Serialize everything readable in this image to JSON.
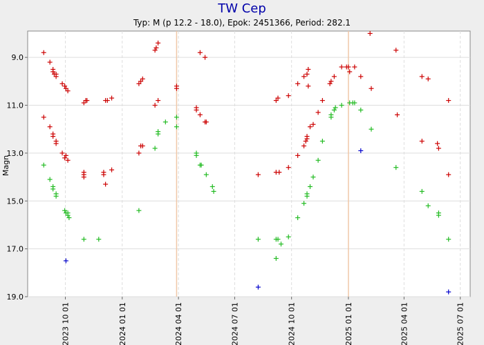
{
  "chart_data": {
    "type": "scatter",
    "title": "TW Cep",
    "subtitle": "Typ: M (p 12.2 - 18.0), Epok: 2451366, Period: 282.1",
    "ylabel": "Magn",
    "xlabel": "",
    "y_inverted": true,
    "ylim": [
      19.0,
      7.9
    ],
    "xlim": [
      "2023-08-01",
      "2025-07-17"
    ],
    "y_ticks": [
      "9.0",
      "11.0",
      "13.0",
      "15.0",
      "17.0",
      "19.0"
    ],
    "x_ticks": [
      "2023 10 01",
      "2024 01 01",
      "2024 04 01",
      "2024 07 01",
      "2024 10 01",
      "2025 01 01",
      "2025 04 01",
      "2025 07 01"
    ],
    "x_tick_dates": [
      "2023-10-01",
      "2024-01-01",
      "2024-04-01",
      "2024-07-01",
      "2024-10-01",
      "2025-01-01",
      "2025-04-01",
      "2025-07-01"
    ],
    "vertical_markers": [
      "2024-03-29",
      "2025-01-01"
    ],
    "grid": true,
    "colors": {
      "background": "#eeeeee",
      "plot_bg": "#ffffff",
      "grid": "#dddddd",
      "title": "#0000aa",
      "marker_line": "#f0c8a8"
    },
    "series": [
      {
        "color": "#cc0000",
        "points": [
          [
            "2023-08-27",
            8.8
          ],
          [
            "2023-09-06",
            9.2
          ],
          [
            "2023-09-11",
            9.6
          ],
          [
            "2023-09-13",
            9.7
          ],
          [
            "2023-09-11",
            9.5
          ],
          [
            "2023-09-16",
            9.8
          ],
          [
            "2023-09-16",
            9.7
          ],
          [
            "2023-09-26",
            10.1
          ],
          [
            "2023-09-30",
            10.2
          ],
          [
            "2023-10-05",
            10.4
          ],
          [
            "2023-10-02",
            10.3
          ],
          [
            "2023-10-31",
            10.9
          ],
          [
            "2023-11-03",
            10.8
          ],
          [
            "2023-11-05",
            10.8
          ],
          [
            "2023-12-05",
            10.8
          ],
          [
            "2023-12-08",
            10.8
          ],
          [
            "2023-12-15",
            10.7
          ],
          [
            "2024-01-28",
            10.1
          ],
          [
            "2024-01-31",
            10.0
          ],
          [
            "2024-02-03",
            9.9
          ],
          [
            "2024-02-23",
            8.7
          ],
          [
            "2024-02-25",
            8.6
          ],
          [
            "2024-02-28",
            8.4
          ],
          [
            "2024-02-23",
            11.0
          ],
          [
            "2024-02-28",
            10.8
          ],
          [
            "2024-03-29",
            10.2
          ],
          [
            "2024-03-29",
            10.3
          ],
          [
            "2024-04-30",
            11.1
          ],
          [
            "2024-04-30",
            11.2
          ],
          [
            "2024-05-06",
            8.8
          ],
          [
            "2024-05-06",
            11.4
          ],
          [
            "2024-05-14",
            11.7
          ],
          [
            "2024-05-14",
            9.0
          ],
          [
            "2024-05-16",
            11.7
          ],
          [
            "2023-08-27",
            11.5
          ],
          [
            "2023-09-06",
            11.9
          ],
          [
            "2023-09-11",
            12.2
          ],
          [
            "2023-09-11",
            12.3
          ],
          [
            "2023-09-16",
            12.5
          ],
          [
            "2023-09-16",
            12.6
          ],
          [
            "2023-09-26",
            13.0
          ],
          [
            "2023-09-30",
            13.2
          ],
          [
            "2023-10-02",
            13.1
          ],
          [
            "2023-10-05",
            13.3
          ],
          [
            "2023-10-31",
            13.8
          ],
          [
            "2023-10-31",
            14.0
          ],
          [
            "2023-10-31",
            13.9
          ],
          [
            "2023-12-02",
            13.8
          ],
          [
            "2023-12-02",
            13.9
          ],
          [
            "2023-12-05",
            14.3
          ],
          [
            "2023-12-15",
            13.7
          ],
          [
            "2024-01-28",
            13.0
          ],
          [
            "2024-01-31",
            12.7
          ],
          [
            "2024-02-03",
            12.7
          ],
          [
            "2024-08-08",
            13.9
          ],
          [
            "2024-09-06",
            10.8
          ],
          [
            "2024-09-09",
            10.7
          ],
          [
            "2024-09-06",
            13.8
          ],
          [
            "2024-09-11",
            13.8
          ],
          [
            "2024-09-26",
            10.6
          ],
          [
            "2024-09-26",
            13.6
          ],
          [
            "2024-10-11",
            10.1
          ],
          [
            "2024-10-11",
            13.1
          ],
          [
            "2024-10-21",
            12.7
          ],
          [
            "2024-10-24",
            12.5
          ],
          [
            "2024-10-26",
            12.4
          ],
          [
            "2024-10-26",
            12.3
          ],
          [
            "2024-10-21",
            9.8
          ],
          [
            "2024-10-26",
            9.7
          ],
          [
            "2024-10-28",
            9.5
          ],
          [
            "2024-10-28",
            10.2
          ],
          [
            "2024-10-31",
            11.9
          ],
          [
            "2024-11-05",
            11.8
          ],
          [
            "2024-11-13",
            11.3
          ],
          [
            "2024-11-20",
            10.8
          ],
          [
            "2024-12-02",
            10.1
          ],
          [
            "2024-12-04",
            10.0
          ],
          [
            "2024-12-09",
            9.8
          ],
          [
            "2024-12-21",
            9.4
          ],
          [
            "2024-12-29",
            9.4
          ],
          [
            "2025-01-01",
            9.4
          ],
          [
            "2025-01-03",
            9.6
          ],
          [
            "2025-01-11",
            9.4
          ],
          [
            "2025-01-21",
            9.8
          ],
          [
            "2025-02-05",
            8.0
          ],
          [
            "2025-02-07",
            10.3
          ],
          [
            "2025-03-19",
            8.7
          ],
          [
            "2025-03-21",
            11.4
          ],
          [
            "2025-04-30",
            9.8
          ],
          [
            "2025-05-10",
            9.9
          ],
          [
            "2025-04-30",
            12.5
          ],
          [
            "2025-05-25",
            12.6
          ],
          [
            "2025-05-27",
            12.8
          ],
          [
            "2025-06-12",
            10.8
          ],
          [
            "2025-06-12",
            13.9
          ]
        ]
      },
      {
        "color": "#22bb22",
        "points": [
          [
            "2023-08-27",
            13.5
          ],
          [
            "2023-09-06",
            14.1
          ],
          [
            "2023-09-11",
            14.4
          ],
          [
            "2023-09-11",
            14.5
          ],
          [
            "2023-09-16",
            14.7
          ],
          [
            "2023-09-16",
            14.8
          ],
          [
            "2023-09-30",
            15.4
          ],
          [
            "2023-10-02",
            15.5
          ],
          [
            "2023-10-05",
            15.6
          ],
          [
            "2023-10-05",
            15.5
          ],
          [
            "2023-10-07",
            15.7
          ],
          [
            "2023-10-31",
            16.6
          ],
          [
            "2023-11-24",
            16.6
          ],
          [
            "2024-01-28",
            15.4
          ],
          [
            "2024-02-23",
            12.8
          ],
          [
            "2024-02-28",
            12.2
          ],
          [
            "2024-02-28",
            12.1
          ],
          [
            "2024-03-11",
            11.7
          ],
          [
            "2024-03-29",
            11.5
          ],
          [
            "2024-03-29",
            11.9
          ],
          [
            "2024-04-30",
            13.0
          ],
          [
            "2024-04-30",
            13.1
          ],
          [
            "2024-05-06",
            13.5
          ],
          [
            "2024-05-08",
            13.5
          ],
          [
            "2024-05-16",
            13.9
          ],
          [
            "2024-05-26",
            14.4
          ],
          [
            "2024-05-28",
            14.6
          ],
          [
            "2024-08-08",
            16.6
          ],
          [
            "2024-09-06",
            16.6
          ],
          [
            "2024-09-09",
            16.6
          ],
          [
            "2024-09-06",
            17.4
          ],
          [
            "2024-09-14",
            16.8
          ],
          [
            "2024-09-26",
            16.5
          ],
          [
            "2024-10-11",
            15.7
          ],
          [
            "2024-10-21",
            15.1
          ],
          [
            "2024-10-26",
            14.8
          ],
          [
            "2024-10-26",
            14.7
          ],
          [
            "2024-10-31",
            14.4
          ],
          [
            "2024-11-05",
            14.0
          ],
          [
            "2024-11-13",
            13.3
          ],
          [
            "2024-11-20",
            12.5
          ],
          [
            "2024-12-04",
            11.5
          ],
          [
            "2024-12-04",
            11.4
          ],
          [
            "2024-12-09",
            11.2
          ],
          [
            "2024-12-11",
            11.1
          ],
          [
            "2024-12-21",
            11.0
          ],
          [
            "2025-01-03",
            10.9
          ],
          [
            "2025-01-08",
            10.9
          ],
          [
            "2025-01-11",
            10.9
          ],
          [
            "2025-01-21",
            11.2
          ],
          [
            "2025-02-07",
            12.0
          ],
          [
            "2025-03-19",
            13.6
          ],
          [
            "2025-04-30",
            14.6
          ],
          [
            "2025-05-10",
            15.2
          ],
          [
            "2025-05-27",
            15.6
          ],
          [
            "2025-05-27",
            15.5
          ],
          [
            "2025-06-12",
            16.6
          ]
        ]
      },
      {
        "color": "#0000cc",
        "points": [
          [
            "2023-10-02",
            17.5
          ],
          [
            "2024-08-08",
            18.6
          ],
          [
            "2025-01-21",
            12.9
          ],
          [
            "2025-06-12",
            18.8
          ]
        ]
      }
    ]
  }
}
